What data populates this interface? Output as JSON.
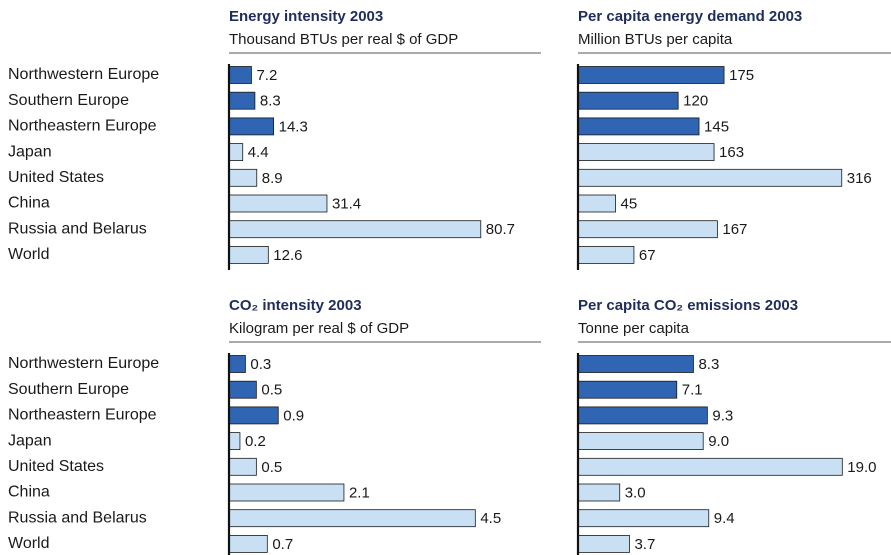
{
  "chart_data": [
    {
      "type": "bar",
      "orientation": "horizontal",
      "title": "Energy intensity 2003",
      "subtitle": "Thousand BTUs per real $ of GDP",
      "categories": [
        "Northwestern Europe",
        "Southern Europe",
        "Northeastern Europe",
        "Japan",
        "United States",
        "China",
        "Russia and Belarus",
        "World"
      ],
      "values": [
        7.2,
        8.3,
        14.3,
        4.4,
        8.9,
        31.4,
        80.7,
        12.6
      ],
      "colors": [
        "#2f65b3",
        "#2f65b3",
        "#2f65b3",
        "#c8dff4",
        "#c8dff4",
        "#c8dff4",
        "#c8dff4",
        "#c8dff4"
      ],
      "xlim": [
        0,
        100
      ]
    },
    {
      "type": "bar",
      "orientation": "horizontal",
      "title": "Per capita energy demand 2003",
      "subtitle": "Million BTUs per capita",
      "values": [
        175,
        120,
        145,
        163,
        316,
        45,
        167,
        67
      ],
      "colors": [
        "#2f65b3",
        "#2f65b3",
        "#2f65b3",
        "#c8dff4",
        "#c8dff4",
        "#c8dff4",
        "#c8dff4",
        "#c8dff4"
      ],
      "xlim": [
        0,
        375
      ]
    },
    {
      "type": "bar",
      "orientation": "horizontal",
      "title": "CO₂ intensity 2003",
      "subtitle": "Kilogram per real $ of GDP",
      "categories": [
        "Northwestern Europe",
        "Southern Europe",
        "Northeastern Europe",
        "Japan",
        "United States",
        "China",
        "Russia and Belarus",
        "World"
      ],
      "values": [
        0.3,
        0.5,
        0.9,
        0.2,
        0.5,
        2.1,
        4.5,
        0.7
      ],
      "colors": [
        "#2f65b3",
        "#2f65b3",
        "#2f65b3",
        "#c8dff4",
        "#c8dff4",
        "#c8dff4",
        "#c8dff4",
        "#c8dff4"
      ],
      "xlim": [
        0,
        5.7
      ]
    },
    {
      "type": "bar",
      "orientation": "horizontal",
      "title": "Per capita CO₂ emissions 2003",
      "subtitle": "Tonne per capita",
      "values": [
        8.3,
        7.1,
        9.3,
        9,
        19,
        3,
        9.4,
        3.7
      ],
      "value_labels": [
        "8.3",
        "7.1",
        "9.3",
        "9.0",
        "19.0",
        "3.0",
        "9.4",
        "3.7"
      ],
      "colors": [
        "#2f65b3",
        "#2f65b3",
        "#2f65b3",
        "#c8dff4",
        "#c8dff4",
        "#c8dff4",
        "#c8dff4",
        "#c8dff4"
      ],
      "xlim": [
        0,
        22.5
      ]
    }
  ]
}
